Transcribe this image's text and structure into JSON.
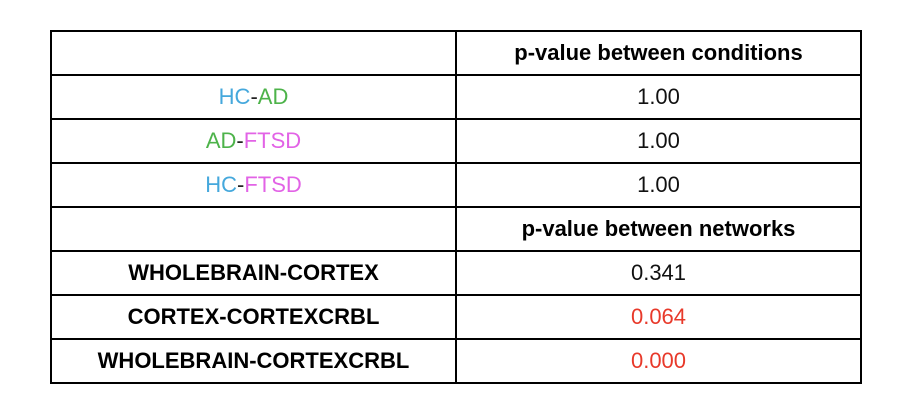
{
  "table": {
    "rows": [
      {
        "header": "p-value between conditions"
      },
      {
        "label": [
          {
            "text": "HC",
            "color": "#45a8dc"
          },
          {
            "text": "-",
            "color": "#222222"
          },
          {
            "text": "AD",
            "color": "#4db34a"
          }
        ],
        "value": "1.00",
        "value_color": "#111111"
      },
      {
        "label": [
          {
            "text": "AD",
            "color": "#4db34a"
          },
          {
            "text": "-",
            "color": "#222222"
          },
          {
            "text": "FTSD",
            "color": "#e263e6"
          }
        ],
        "value": "1.00",
        "value_color": "#111111"
      },
      {
        "label": [
          {
            "text": "HC",
            "color": "#45a8dc"
          },
          {
            "text": "-",
            "color": "#222222"
          },
          {
            "text": "FTSD",
            "color": "#e263e6"
          }
        ],
        "value": "1.00",
        "value_color": "#111111"
      },
      {
        "header": "p-value between networks"
      },
      {
        "label": [
          {
            "text": "WHOLEBRAIN-CORTEX",
            "color": "#000000",
            "bold": true
          }
        ],
        "value": "0.341",
        "value_color": "#111111"
      },
      {
        "label": [
          {
            "text": "CORTEX-CORTEXCRBL",
            "color": "#000000",
            "bold": true
          }
        ],
        "value": "0.064",
        "value_color": "#e8392a"
      },
      {
        "label": [
          {
            "text": "WHOLEBRAIN-CORTEXCRBL",
            "color": "#000000",
            "bold": true
          }
        ],
        "value": "0.000",
        "value_color": "#e8392a"
      }
    ]
  }
}
